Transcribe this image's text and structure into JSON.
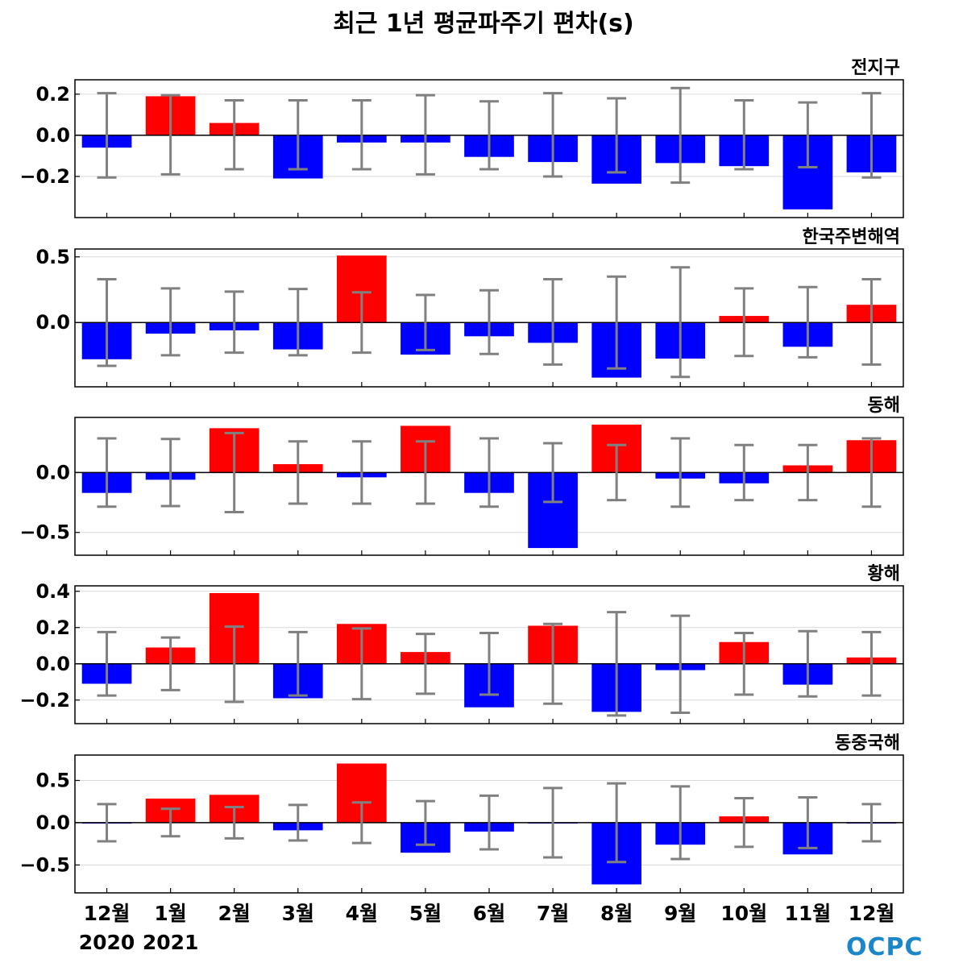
{
  "title": "최근 1년 평균파주기 편차(s)",
  "logo": "OCPC",
  "x_labels": [
    "12월",
    "1월",
    "2월",
    "3월",
    "4월",
    "5월",
    "6월",
    "7월",
    "8월",
    "9월",
    "10월",
    "11월",
    "12월"
  ],
  "year_labels": [
    {
      "text": "2020",
      "index": 0
    },
    {
      "text": "2021",
      "index": 1
    }
  ],
  "colors": {
    "positive": "#ff0000",
    "negative": "#0000ff",
    "error_bar": "#808080"
  },
  "chart_data": [
    {
      "type": "bar",
      "title": "전지구",
      "categories": [
        "12월",
        "1월",
        "2월",
        "3월",
        "4월",
        "5월",
        "6월",
        "7월",
        "8월",
        "9월",
        "10월",
        "11월",
        "12월"
      ],
      "values": [
        -0.06,
        0.19,
        0.06,
        -0.21,
        -0.035,
        -0.035,
        -0.105,
        -0.13,
        -0.235,
        -0.135,
        -0.15,
        -0.36,
        -0.18
      ],
      "error_upper": [
        0.205,
        0.195,
        0.17,
        0.17,
        0.17,
        0.195,
        0.165,
        0.205,
        0.18,
        0.23,
        0.17,
        0.16,
        0.205
      ],
      "error_lower": [
        -0.205,
        -0.19,
        -0.165,
        -0.165,
        -0.165,
        -0.19,
        -0.165,
        -0.2,
        -0.18,
        -0.23,
        -0.165,
        -0.155,
        -0.205
      ],
      "ylim": [
        -0.4,
        0.27
      ],
      "yticks": [
        0.2,
        0.0,
        -0.2
      ],
      "ytick_labels": [
        "0.2",
        "0.0",
        "−0.2"
      ],
      "grid": true
    },
    {
      "type": "bar",
      "title": "한국주변해역",
      "categories": [
        "12월",
        "1월",
        "2월",
        "3월",
        "4월",
        "5월",
        "6월",
        "7월",
        "8월",
        "9월",
        "10월",
        "11월",
        "12월"
      ],
      "values": [
        -0.28,
        -0.085,
        -0.06,
        -0.205,
        0.51,
        -0.245,
        -0.105,
        -0.155,
        -0.42,
        -0.275,
        0.05,
        -0.185,
        0.135
      ],
      "error_upper": [
        0.33,
        0.26,
        0.235,
        0.255,
        0.23,
        0.21,
        0.245,
        0.33,
        0.35,
        0.42,
        0.26,
        0.27,
        0.33
      ],
      "error_lower": [
        -0.33,
        -0.25,
        -0.23,
        -0.25,
        -0.23,
        -0.21,
        -0.24,
        -0.32,
        -0.35,
        -0.415,
        -0.255,
        -0.265,
        -0.32
      ],
      "ylim": [
        -0.49,
        0.56
      ],
      "yticks": [
        0.5,
        0.0
      ],
      "ytick_labels": [
        "0.5",
        "0.0"
      ],
      "grid": true
    },
    {
      "type": "bar",
      "title": "동해",
      "categories": [
        "12월",
        "1월",
        "2월",
        "3월",
        "4월",
        "5월",
        "6월",
        "7월",
        "8월",
        "9월",
        "10월",
        "11월",
        "12월"
      ],
      "values": [
        -0.17,
        -0.06,
        0.37,
        0.07,
        -0.04,
        0.39,
        -0.17,
        -0.63,
        0.4,
        -0.05,
        -0.09,
        0.06,
        0.27
      ],
      "error_upper": [
        0.285,
        0.28,
        0.33,
        0.26,
        0.26,
        0.26,
        0.285,
        0.245,
        0.23,
        0.285,
        0.23,
        0.23,
        0.285
      ],
      "error_lower": [
        -0.285,
        -0.28,
        -0.33,
        -0.26,
        -0.26,
        -0.26,
        -0.285,
        -0.245,
        -0.23,
        -0.285,
        -0.23,
        -0.23,
        -0.285
      ],
      "ylim": [
        -0.69,
        0.46
      ],
      "yticks": [
        0.0,
        -0.5
      ],
      "ytick_labels": [
        "0.0",
        "−0.5"
      ],
      "grid": true
    },
    {
      "type": "bar",
      "title": "황해",
      "categories": [
        "12월",
        "1월",
        "2월",
        "3월",
        "4월",
        "5월",
        "6월",
        "7월",
        "8월",
        "9월",
        "10월",
        "11월",
        "12월"
      ],
      "values": [
        -0.11,
        0.09,
        0.39,
        -0.19,
        0.22,
        0.065,
        -0.24,
        0.21,
        -0.265,
        -0.035,
        0.12,
        -0.115,
        0.035
      ],
      "error_upper": [
        0.175,
        0.145,
        0.205,
        0.175,
        0.195,
        0.165,
        0.17,
        0.22,
        0.285,
        0.265,
        0.17,
        0.18,
        0.175
      ],
      "error_lower": [
        -0.175,
        -0.145,
        -0.21,
        -0.175,
        -0.195,
        -0.165,
        -0.17,
        -0.22,
        -0.285,
        -0.27,
        -0.17,
        -0.18,
        -0.175
      ],
      "ylim": [
        -0.33,
        0.43
      ],
      "yticks": [
        0.4,
        0.2,
        0.0,
        -0.2
      ],
      "ytick_labels": [
        "0.4",
        "0.2",
        "0.0",
        "−0.2"
      ],
      "grid": true
    },
    {
      "type": "bar",
      "title": "동중국해",
      "categories": [
        "12월",
        "1월",
        "2월",
        "3월",
        "4월",
        "5월",
        "6월",
        "7월",
        "8월",
        "9월",
        "10월",
        "11월",
        "12월"
      ],
      "values": [
        -0.01,
        0.285,
        0.33,
        -0.09,
        0.7,
        -0.355,
        -0.105,
        0.0,
        -0.73,
        -0.26,
        0.075,
        -0.375,
        0.0
      ],
      "error_upper": [
        0.22,
        0.165,
        0.185,
        0.21,
        0.24,
        0.255,
        0.32,
        0.41,
        0.465,
        0.43,
        0.29,
        0.3,
        0.22
      ],
      "error_lower": [
        -0.22,
        -0.16,
        -0.185,
        -0.21,
        -0.24,
        -0.26,
        -0.315,
        -0.41,
        -0.465,
        -0.43,
        -0.285,
        -0.3,
        -0.22
      ],
      "ylim": [
        -0.83,
        0.8
      ],
      "yticks": [
        0.5,
        0.0,
        -0.5
      ],
      "ytick_labels": [
        "0.5",
        "0.0",
        "−0.5"
      ],
      "grid": true
    }
  ]
}
